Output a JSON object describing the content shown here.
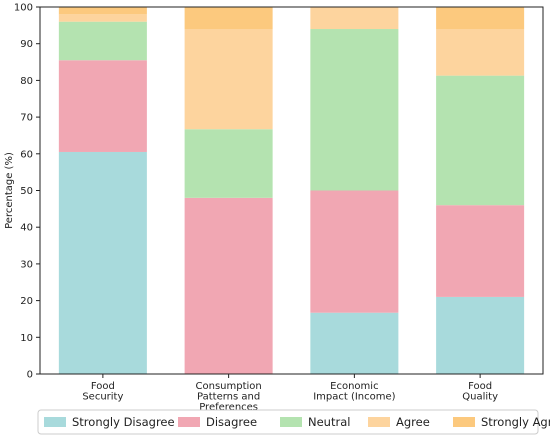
{
  "chart_data": {
    "type": "bar",
    "stacked": true,
    "title": "",
    "xlabel": "",
    "ylabel": "Percentage (%)",
    "ylim": [
      0,
      100
    ],
    "yticks": [
      0,
      10,
      20,
      30,
      40,
      50,
      60,
      70,
      80,
      90,
      100
    ],
    "categories": [
      [
        "Food",
        "Security"
      ],
      [
        "Consumption",
        "Patterns and",
        "Preferences"
      ],
      [
        "Economic",
        "Impact (Income)"
      ],
      [
        "Food",
        "Quality"
      ]
    ],
    "series": [
      {
        "name": "Strongly Disagree",
        "color": "#a8dadc",
        "values": [
          60.5,
          0,
          16.7,
          21.0
        ]
      },
      {
        "name": "Disagree",
        "color": "#f1a7b3",
        "values": [
          25.0,
          48.0,
          33.3,
          25.0
        ]
      },
      {
        "name": "Neutral",
        "color": "#b4e3b0",
        "values": [
          10.5,
          18.7,
          44.0,
          35.3
        ]
      },
      {
        "name": "Agree",
        "color": "#fdd49e",
        "values": [
          2.0,
          27.3,
          6.0,
          12.7
        ]
      },
      {
        "name": "Strongly Agree",
        "color": "#fcc97e",
        "values": [
          2.0,
          6.0,
          0,
          6.0
        ]
      }
    ],
    "grid": false,
    "legend_position": "bottom"
  }
}
